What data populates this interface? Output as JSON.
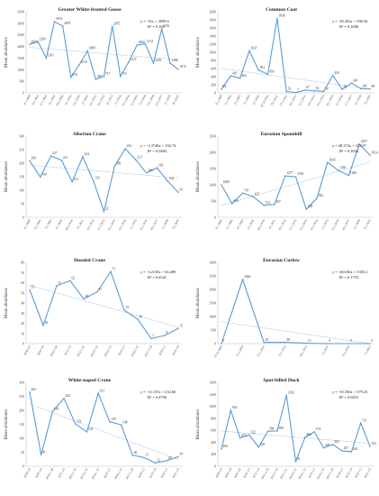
{
  "chart_data": [
    {
      "type": "line",
      "title": "Greater White-fronted Goose",
      "ylabel": "Mean abundance",
      "equation": "y = -52x + 2099.6",
      "r2": "R² = 0.105",
      "ylim": [
        0,
        3500
      ],
      "yticks": [
        "0",
        "500",
        "1000",
        "1500",
        "2000",
        "2500",
        "3000",
        "3500"
      ],
      "x": [
        "6.1.2008",
        "6.1.2009",
        "11.1.2009",
        "4.1.2009",
        "18.1.2009",
        "6.1.2010",
        "13.1.2010",
        "2.1.2010",
        "14.1.2011",
        "10.1.2012",
        "6.1.2013",
        "1.1.2014",
        "19.1.2014",
        "11.1.2015",
        "9.1.2016",
        "13.1.2016",
        "11.1.2017",
        "2.1.2018",
        "8.1.2019"
      ],
      "values": [
        2093,
        2209,
        1501,
        3074,
        2879,
        678,
        1210,
        1809,
        587,
        717,
        2875,
        715,
        1337,
        2060,
        2114,
        1283,
        2763,
        1290,
        1015
      ],
      "labels": [
        "2093",
        "2209",
        "1501",
        "3074",
        "2879",
        "678",
        "1210",
        "1809",
        "587",
        "717",
        "2875",
        "715",
        "1337",
        "2060",
        "2114",
        "1283",
        "2763",
        "1290",
        "1015"
      ],
      "line_color": "#5b9bd5"
    },
    {
      "type": "line",
      "title": "Common Coot",
      "ylabel": "Mean abundance",
      "equation": "y = -29.203x + 596.94",
      "r2": "R² = 0.1008",
      "ylim": [
        0,
        2000
      ],
      "yticks": [
        "0",
        "200",
        "400",
        "600",
        "800",
        "1000",
        "1200",
        "1400",
        "1600",
        "1800",
        "2000"
      ],
      "x": [
        "6.1.2008",
        "9.1.2009",
        "4.1.2009",
        "5.1.2009",
        "4.1.2010",
        "20.12.2010",
        "23.1.2011",
        "27.1.2011",
        "10.1.2012",
        "11.1.2012",
        "18.1.2013",
        "19.1.2014",
        "20.1.2015",
        "11.1.2016",
        "17.1.2017",
        "6.1.2018",
        "5.1.2019"
      ],
      "values": [
        94,
        419,
        363,
        1037,
        561,
        459,
        1838,
        33,
        7,
        67,
        52,
        34,
        430,
        85,
        240,
        106,
        98
      ],
      "labels": [
        "94",
        "419",
        "363",
        "1037",
        "561",
        "459",
        "1838",
        "33",
        "7",
        "67",
        "52",
        "34",
        "430",
        "85",
        "240",
        "106",
        "98"
      ],
      "line_color": "#5b9bd5"
    },
    {
      "type": "line",
      "title": "Siberian Crane",
      "ylabel": "Mean abundance",
      "equation": "y = -3.3748x + 194.74",
      "r2": "R² = 0.0484",
      "ylim": [
        0,
        300
      ],
      "yticks": [
        "0",
        "50",
        "100",
        "150",
        "200",
        "250",
        "300"
      ],
      "x": [
        "6.1.2008",
        "6.1.2009",
        "5.1.2009",
        "4.1.2010",
        "18.1.2010",
        "4.1.2011",
        "10.1.2012",
        "17.1.2012",
        "12.1.2013",
        "13.1.2014",
        "2.1.2015",
        "12.1.2016",
        "24.1.2017",
        "2.1.2018",
        "8.1.2019"
      ],
      "values": [
        209,
        149,
        227,
        211,
        131,
        224,
        135,
        22,
        189,
        254,
        213,
        164,
        183,
        134,
        93
      ],
      "labels": [
        "209",
        "149",
        "227",
        "211",
        "131",
        "224",
        "135",
        "22",
        "189",
        "254",
        "213",
        "164",
        "183",
        "134",
        "93"
      ],
      "line_color": "#5b9bd5"
    },
    {
      "type": "line",
      "title": "Eurasian Spoonbill",
      "ylabel": "Mean abundance",
      "equation": "y = 48.373x + 333.97",
      "r2": "R² = 0.3924",
      "ylim": [
        0,
        2500
      ],
      "yticks": [
        "0",
        "500",
        "1000",
        "1500",
        "2000",
        "2500"
      ],
      "x": [
        "6.1.2008",
        "9.1.2009",
        "6.1.2009",
        "4.1.2010",
        "18.1.2010",
        "4.1.2011",
        "10.1.2012",
        "17.1.2012",
        "12.1.2013",
        "13.1.2014",
        "2.1.2015",
        "12.1.2016",
        "24.1.2017",
        "2.1.2018",
        "8.1.2019"
      ],
      "values": [
        1000,
        419,
        747,
        637,
        372,
        397,
        1277,
        1250,
        249,
        592,
        1693,
        1450,
        1289,
        2257,
        1914
      ],
      "labels": [
        "1000",
        "419",
        "747",
        "637",
        "372",
        "397",
        "1277",
        "1250",
        "249",
        "592",
        "1693",
        "1450",
        "1289",
        "2257",
        "1914"
      ],
      "line_color": "#5b9bd5"
    },
    {
      "type": "line",
      "title": "Hooded Crane",
      "ylabel": "Mean abundance",
      "equation": "y = -3.2118x + 63.489",
      "r2": "R² = 0.4341",
      "ylim": [
        0,
        80
      ],
      "yticks": [
        "0",
        "10",
        "20",
        "30",
        "40",
        "50",
        "60",
        "70",
        "80"
      ],
      "x": [
        "2008.1.8",
        "2009.1.8",
        "2010.1.18",
        "2011.1.4",
        "2012.1.10",
        "2013.1.12",
        "2014.1.13",
        "2015.1.2",
        "2016.1.12",
        "2017.1.24",
        "2018.1.2",
        "2019.1.8"
      ],
      "values": [
        53,
        18,
        57,
        62,
        44,
        51,
        71,
        33,
        24,
        5,
        8,
        15
      ],
      "labels": [
        "53",
        "18",
        "57",
        "62",
        "44",
        "51",
        "71",
        "33",
        "24",
        "5",
        "8",
        "15"
      ],
      "line_color": "#5b9bd5"
    },
    {
      "type": "line",
      "title": "Eurasian Curlew",
      "ylabel": "Mean abundance",
      "equation": "y = -263.86x + 1305.2",
      "r2": "R² = 0.1753",
      "ylim": [
        0,
        3000
      ],
      "yticks": [
        "0",
        "500",
        "1000",
        "1500",
        "2000",
        "2500",
        "3000"
      ],
      "x": [
        "19.12.2008",
        "11.1.2009",
        "27.1.2010",
        "13.1.2012",
        "16.1.2013",
        "1.1.2016",
        "15.1.2019",
        "1.1.2021"
      ],
      "values": [
        0,
        2366,
        45,
        48,
        13,
        0,
        0,
        0
      ],
      "labels": [
        "0",
        "2366",
        "45",
        "48",
        "13",
        "0",
        "0",
        "0"
      ],
      "line_color": "#5b9bd5"
    },
    {
      "type": "line",
      "title": "White-naped Crane",
      "ylabel": "Mean abundance",
      "equation": "y = -13.155x + 232.66",
      "r2": "R² = 0.4796",
      "ylim": [
        0,
        300
      ],
      "yticks": [
        "0",
        "50",
        "100",
        "150",
        "200",
        "250",
        "300"
      ],
      "x": [
        "2008.1.8",
        "2009.1.8",
        "2010.1.18",
        "2011.1.4",
        "2012.1.10",
        "2013.1.12",
        "2014.1.13",
        "2015.1.2",
        "2016.1.12",
        "2017.1.24",
        "2018.1.2",
        "2019.1.8",
        "2020.1.5",
        "2021.1.6"
      ],
      "values": [
        265,
        41,
        196,
        243,
        151,
        123,
        261,
        159,
        148,
        40,
        31,
        12,
        20,
        34
      ],
      "labels": [
        "265",
        "41",
        "196",
        "243",
        "151",
        "123",
        "261",
        "159",
        "148",
        "40",
        "31",
        "12",
        "20",
        "34"
      ],
      "line_color": "#5b9bd5"
    },
    {
      "type": "line",
      "title": "Spot-billed Duck",
      "ylabel": "Mean abundance",
      "equation": "y = -10.356x + 579.25",
      "r2": "R² = 0.0453",
      "ylim": [
        0,
        1400
      ],
      "yticks": [
        "0",
        "200",
        "400",
        "600",
        "800",
        "1000",
        "1200",
        "1400"
      ],
      "x": [
        "2008.1.8",
        "2009.1.8",
        "2010.1.8",
        "2010.1.9",
        "2011.1.4",
        "2011.1.23",
        "2012.1.10",
        "2012.1.11",
        "2013.1.12",
        "2014.1.13",
        "2015.1.2",
        "2016.1.12",
        "2017.1.24",
        "2018.1.2",
        "2019.1.8",
        "2020.1.5",
        "2021.1.6"
      ],
      "values": [
        290,
        934,
        473,
        522,
        318,
        584,
        589,
        1182,
        81,
        482,
        574,
        307,
        363,
        257,
        243,
        721,
        332
      ],
      "labels": [
        "290",
        "934",
        "473",
        "522",
        "318",
        "584",
        "589",
        "1182",
        "81",
        "482",
        "574",
        "307",
        "363",
        "257",
        "243",
        "721",
        "332"
      ],
      "line_color": "#5b9bd5"
    }
  ]
}
